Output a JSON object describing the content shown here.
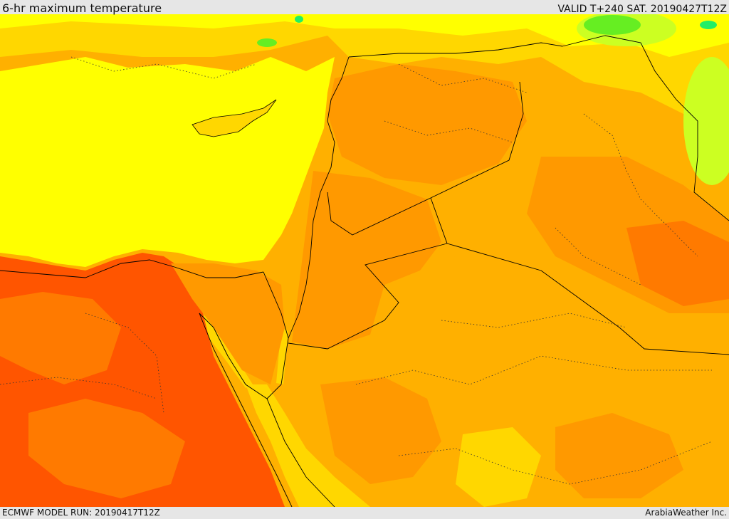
{
  "header": {
    "title": "6-hr maximum temperature",
    "valid_time": "VALID T+240 SAT. 20190427T12Z"
  },
  "footer": {
    "model_run": "ECMWF MODEL RUN: 20190417T12Z",
    "credit": "ArabiaWeather Inc."
  },
  "map": {
    "field": "6-hr maximum temperature",
    "palette": {
      "green_bright": "#22ee66",
      "green": "#66ee22",
      "yellow_green": "#ccff22",
      "yellow": "#ffff00",
      "gold": "#ffd700",
      "orange_light": "#ffb000",
      "orange": "#ff9900",
      "orange_dark": "#ff7a00",
      "red_orange": "#ff5500",
      "red": "#ff3300"
    }
  }
}
